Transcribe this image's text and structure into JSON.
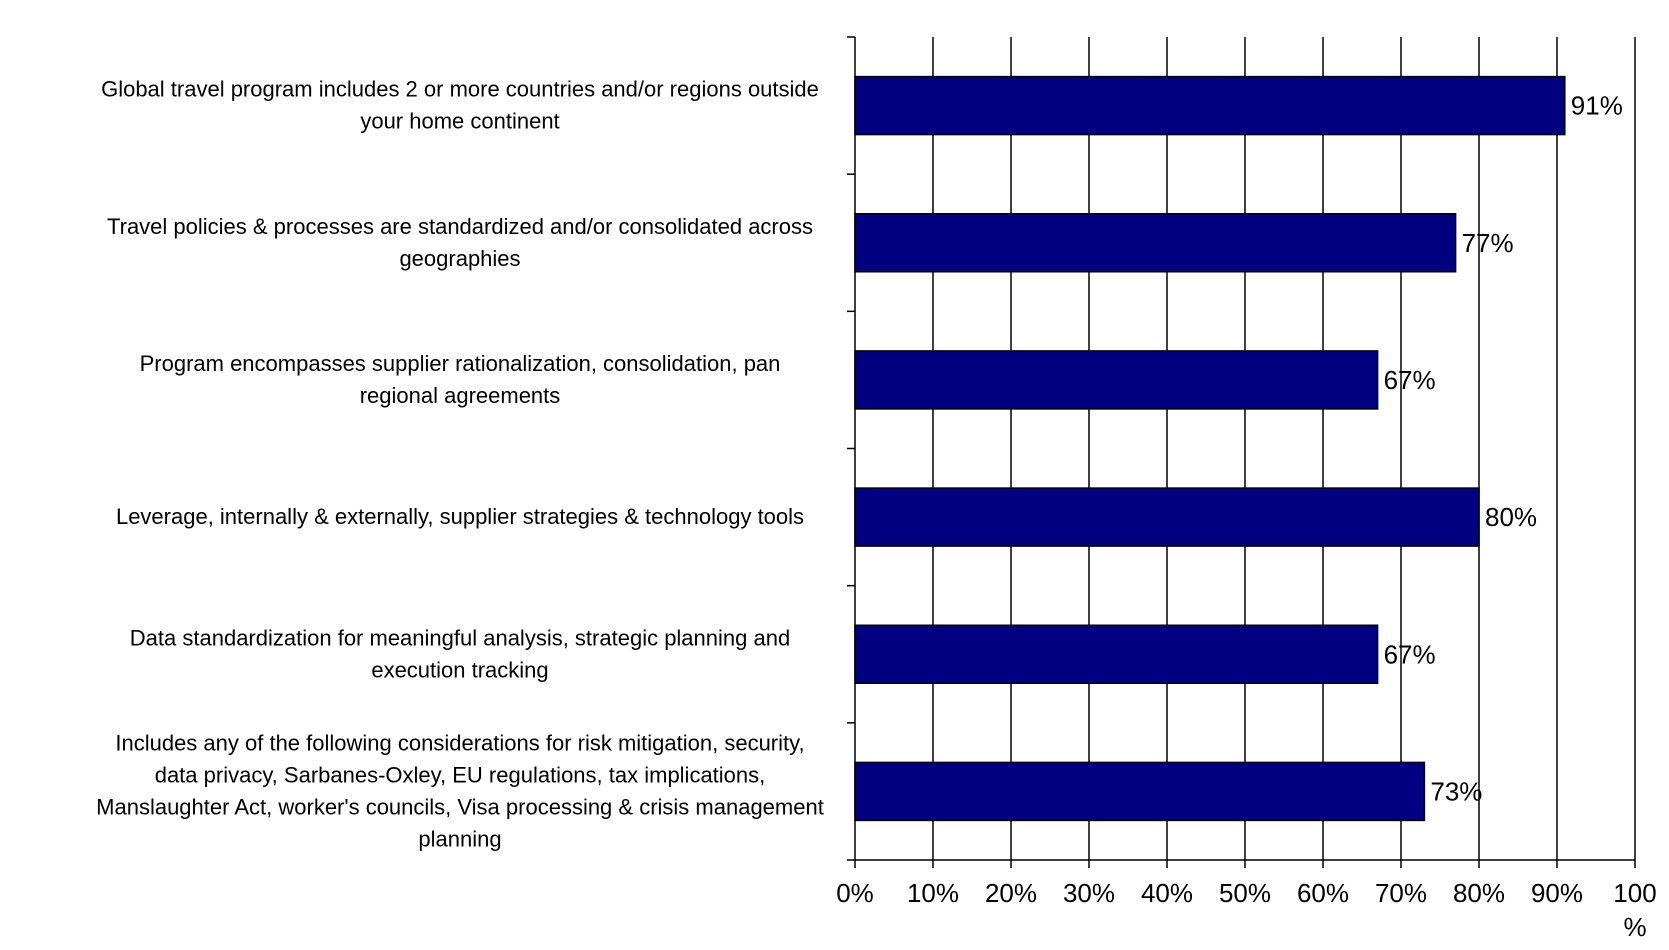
{
  "chart_data": {
    "type": "bar",
    "orientation": "horizontal",
    "categories": [
      [
        "Global travel program includes 2 or more countries and/or regions outside",
        "your home continent"
      ],
      [
        "Travel policies & processes are standardized and/or consolidated across",
        "geographies"
      ],
      [
        "Program encompasses supplier rationalization, consolidation, pan",
        "regional agreements"
      ],
      [
        "Leverage, internally & externally, supplier strategies & technology tools"
      ],
      [
        "Data standardization for meaningful analysis, strategic planning and",
        "execution tracking"
      ],
      [
        "Includes any of the following considerations for risk mitigation, security,",
        "data privacy, Sarbanes-Oxley, EU regulations, tax implications,",
        "Manslaughter Act, worker's councils, Visa processing & crisis management",
        "planning"
      ]
    ],
    "values": [
      91,
      77,
      67,
      80,
      67,
      73
    ],
    "data_labels": [
      "91%",
      "77%",
      "67%",
      "80%",
      "67%",
      "73%"
    ],
    "xlim": [
      0,
      100
    ],
    "x_ticks": [
      [
        "0%"
      ],
      [
        "10%"
      ],
      [
        "20%"
      ],
      [
        "30%"
      ],
      [
        "40%"
      ],
      [
        "50%"
      ],
      [
        "60%"
      ],
      [
        "70%"
      ],
      [
        "80%"
      ],
      [
        "90%"
      ],
      [
        "100",
        "%"
      ]
    ],
    "x_tick_values": [
      0,
      10,
      20,
      30,
      40,
      50,
      60,
      70,
      80,
      90,
      100
    ],
    "grid": "vertical",
    "colors": {
      "bar": "#000080",
      "bar_edge": "#000000",
      "grid": "#000000",
      "background": "#ffffff"
    }
  }
}
